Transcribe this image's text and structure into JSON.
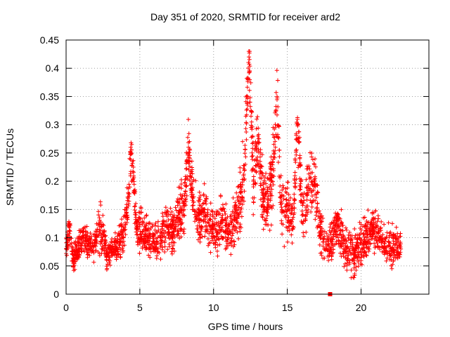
{
  "chart_data": {
    "type": "scatter",
    "title": "Day 351 of 2020, SRMTID for receiver ard2",
    "xlabel": "GPS time / hours",
    "ylabel": "SRMTID / TECUs",
    "xlim": [
      0,
      24.6
    ],
    "ylim": [
      0,
      0.45
    ],
    "x_ticks": [
      0,
      5,
      10,
      15,
      20
    ],
    "x_tick_labels": [
      "0",
      "5",
      "10",
      "15",
      "20"
    ],
    "y_ticks": [
      0,
      0.05,
      0.1,
      0.15,
      0.2,
      0.25,
      0.3,
      0.35,
      0.4,
      0.45
    ],
    "y_tick_labels": [
      "0",
      "0.05",
      "0.1",
      "0.15",
      "0.2",
      "0.25",
      "0.3",
      "0.35",
      "0.4",
      "0.45"
    ],
    "grid": true,
    "marker": "+",
    "color": "#ff0000",
    "x_range_hours": [
      0,
      22.7
    ],
    "series": [
      {
        "name": "SRMTID",
        "x": [
          0.0,
          0.2,
          0.5,
          0.9,
          1.3,
          1.7,
          2.0,
          2.4,
          2.8,
          3.2,
          3.6,
          3.9,
          4.2,
          4.4,
          4.8,
          5.2,
          5.6,
          6.0,
          6.4,
          6.8,
          7.2,
          7.6,
          8.0,
          8.3,
          8.6,
          9.0,
          9.4,
          9.8,
          10.2,
          10.6,
          11.0,
          11.4,
          11.8,
          12.1,
          12.4,
          12.7,
          13.0,
          13.3,
          13.6,
          14.0,
          14.3,
          14.6,
          15.0,
          15.4,
          15.7,
          16.0,
          16.4,
          16.8,
          17.2,
          17.6,
          18.0,
          18.4,
          18.8,
          19.2,
          19.6,
          20.0,
          20.4,
          20.8,
          21.2,
          21.6,
          22.0,
          22.4,
          22.7
        ],
        "y": [
          0.08,
          0.12,
          0.06,
          0.09,
          0.1,
          0.08,
          0.09,
          0.12,
          0.07,
          0.08,
          0.09,
          0.1,
          0.17,
          0.25,
          0.12,
          0.11,
          0.1,
          0.09,
          0.1,
          0.12,
          0.11,
          0.14,
          0.15,
          0.26,
          0.17,
          0.13,
          0.15,
          0.12,
          0.11,
          0.13,
          0.1,
          0.12,
          0.16,
          0.22,
          0.42,
          0.2,
          0.28,
          0.18,
          0.15,
          0.21,
          0.35,
          0.13,
          0.16,
          0.12,
          0.3,
          0.14,
          0.18,
          0.2,
          0.12,
          0.08,
          0.1,
          0.13,
          0.09,
          0.08,
          0.07,
          0.09,
          0.1,
          0.12,
          0.11,
          0.09,
          0.08,
          0.09,
          0.08
        ],
        "spread": [
          0.03,
          0.04,
          0.03,
          0.04,
          0.04,
          0.03,
          0.04,
          0.06,
          0.03,
          0.03,
          0.04,
          0.05,
          0.06,
          0.06,
          0.05,
          0.05,
          0.05,
          0.04,
          0.05,
          0.05,
          0.05,
          0.06,
          0.06,
          0.06,
          0.06,
          0.06,
          0.06,
          0.06,
          0.05,
          0.06,
          0.05,
          0.06,
          0.07,
          0.09,
          0.08,
          0.08,
          0.08,
          0.07,
          0.07,
          0.08,
          0.08,
          0.07,
          0.07,
          0.07,
          0.09,
          0.08,
          0.07,
          0.08,
          0.06,
          0.05,
          0.05,
          0.05,
          0.05,
          0.05,
          0.05,
          0.05,
          0.05,
          0.05,
          0.05,
          0.05,
          0.05,
          0.04,
          0.03
        ]
      }
    ],
    "flagged_points": [
      {
        "x": 17.9,
        "y": 0.0
      }
    ]
  }
}
